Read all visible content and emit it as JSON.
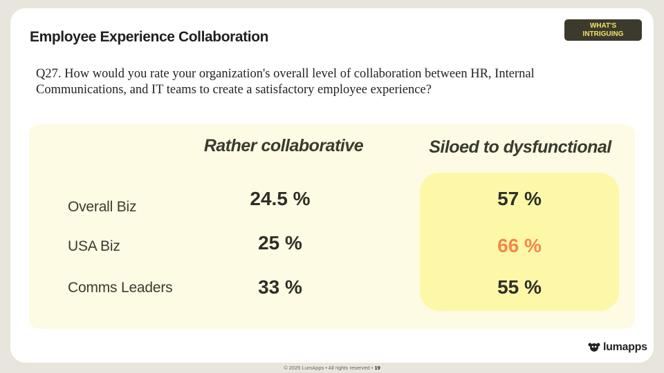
{
  "header": {
    "title": "Employee Experience Collaboration",
    "badge": "WHAT'S INTRIGUING"
  },
  "question": "Q27. How would you rate your organization's overall level of collaboration between HR, Internal Communications, and IT teams to create a satisfactory employee experience?",
  "table": {
    "columns": [
      "Rather collaborative",
      "Siloed to dysfunctional"
    ],
    "rows": [
      {
        "label": "Overall Biz",
        "values": [
          "24.5 %",
          "57 %"
        ]
      },
      {
        "label": "USA Biz",
        "values": [
          "25 %",
          "66 %"
        ]
      },
      {
        "label": "Comms Leaders",
        "values": [
          "33 %",
          "55 %"
        ]
      }
    ]
  },
  "logo": "lumapps",
  "footer": {
    "text": "© 2025 LumApps • All rights reserved •",
    "page": "19"
  }
}
